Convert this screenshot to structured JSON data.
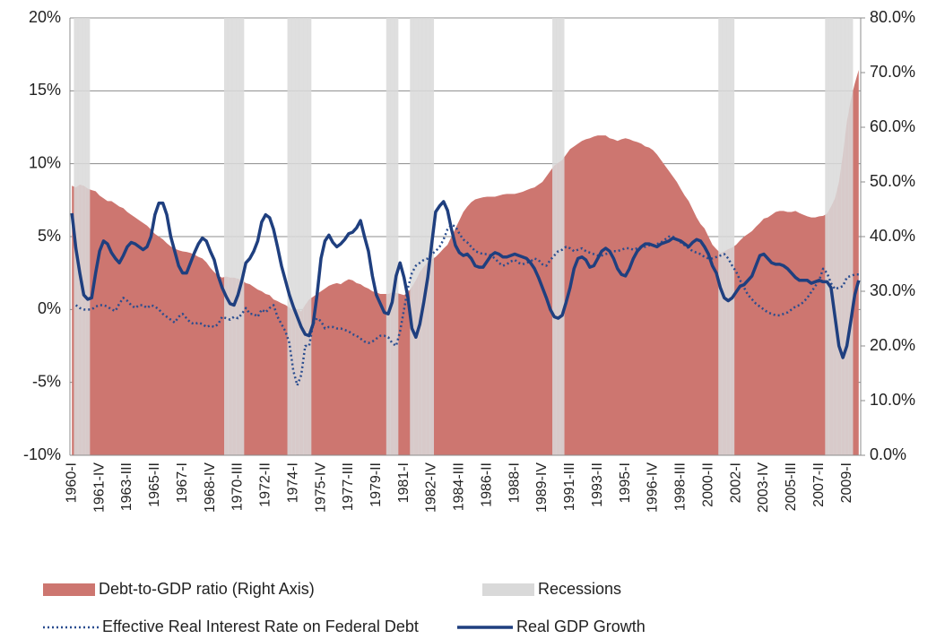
{
  "chart_data": {
    "type": "combo",
    "categories": [
      "1960-I",
      null,
      null,
      null,
      null,
      null,
      null,
      "1961-IV",
      null,
      null,
      null,
      null,
      null,
      null,
      "1963-III",
      null,
      null,
      null,
      null,
      null,
      null,
      "1965-II",
      null,
      null,
      null,
      null,
      null,
      null,
      "1967-I",
      null,
      null,
      null,
      null,
      null,
      null,
      "1968-IV",
      null,
      null,
      null,
      null,
      null,
      null,
      "1970-III",
      null,
      null,
      null,
      null,
      null,
      null,
      "1972-II",
      null,
      null,
      null,
      null,
      null,
      null,
      "1974-I",
      null,
      null,
      null,
      null,
      null,
      null,
      "1975-IV",
      null,
      null,
      null,
      null,
      null,
      null,
      "1977-III",
      null,
      null,
      null,
      null,
      null,
      null,
      "1979-II",
      null,
      null,
      null,
      null,
      null,
      null,
      "1981-I",
      null,
      null,
      null,
      null,
      null,
      null,
      "1982-IV",
      null,
      null,
      null,
      null,
      null,
      null,
      "1984-III",
      null,
      null,
      null,
      null,
      null,
      null,
      "1986-II",
      null,
      null,
      null,
      null,
      null,
      null,
      "1988-I",
      null,
      null,
      null,
      null,
      null,
      null,
      "1989-IV",
      null,
      null,
      null,
      null,
      null,
      null,
      "1991-III",
      null,
      null,
      null,
      null,
      null,
      null,
      "1993-II",
      null,
      null,
      null,
      null,
      null,
      null,
      "1995-I",
      null,
      null,
      null,
      null,
      null,
      null,
      "1996-IV",
      null,
      null,
      null,
      null,
      null,
      null,
      "1998-III",
      null,
      null,
      null,
      null,
      null,
      null,
      "2000-II",
      null,
      null,
      null,
      null,
      null,
      null,
      "2002-I",
      null,
      null,
      null,
      null,
      null,
      null,
      "2003-IV",
      null,
      null,
      null,
      null,
      null,
      null,
      "2005-III",
      null,
      null,
      null,
      null,
      null,
      null,
      "2007-II",
      null,
      null,
      null,
      null,
      null,
      null,
      "2009-I",
      null,
      null,
      null
    ],
    "ylim": [
      -10,
      20
    ],
    "yticks": [
      {
        "value": -10,
        "label": "-10%"
      },
      {
        "value": -5,
        "label": "-5%"
      },
      {
        "value": 0,
        "label": "0%"
      },
      {
        "value": 5,
        "label": "5%"
      },
      {
        "value": 10,
        "label": "10%"
      },
      {
        "value": 15,
        "label": "15%"
      },
      {
        "value": 20,
        "label": "20%"
      }
    ],
    "y2lim": [
      0,
      80
    ],
    "y2ticks": [
      {
        "value": 0,
        "label": "0.0%"
      },
      {
        "value": 10,
        "label": "10.0%"
      },
      {
        "value": 20,
        "label": "20.0%"
      },
      {
        "value": 30,
        "label": "30.0%"
      },
      {
        "value": 40,
        "label": "40.0%"
      },
      {
        "value": 50,
        "label": "50.0%"
      },
      {
        "value": 60,
        "label": "60.0%"
      },
      {
        "value": 70,
        "label": "70.0%"
      },
      {
        "value": 80,
        "label": "80.0%"
      }
    ],
    "grid": true,
    "series": [
      {
        "name": "Debt-to-GDP ratio (Right Axis)",
        "type": "area",
        "axis": "y2",
        "color": "#cd7670",
        "values": [
          49.3,
          49.0,
          49.5,
          49.3,
          48.8,
          48.5,
          48.3,
          47.5,
          47.0,
          46.5,
          46.5,
          46.0,
          45.5,
          45.2,
          44.5,
          44.0,
          43.5,
          43.0,
          42.5,
          42.0,
          41.3,
          40.5,
          40.0,
          39.5,
          38.8,
          38.2,
          37.8,
          37.5,
          37.3,
          37.2,
          37.0,
          36.7,
          36.3,
          36.0,
          35.3,
          34.3,
          33.5,
          32.8,
          32.5,
          32.7,
          32.5,
          32.5,
          32.3,
          32.0,
          31.5,
          31.3,
          30.8,
          30.3,
          30.0,
          29.5,
          29.3,
          28.5,
          28.2,
          27.8,
          27.5,
          27.0,
          26.5,
          26.7,
          26.3,
          27.5,
          28.5,
          29.0,
          29.5,
          30.0,
          30.5,
          31.0,
          31.3,
          31.5,
          31.3,
          31.8,
          32.2,
          32.0,
          31.5,
          31.3,
          30.8,
          30.5,
          30.0,
          29.8,
          29.5,
          29.5,
          29.5,
          29.8,
          29.7,
          29.5,
          29.3,
          29.8,
          30.8,
          32.0,
          33.5,
          34.5,
          35.3,
          35.8,
          36.3,
          37.0,
          37.8,
          38.5,
          40.0,
          41.5,
          43.0,
          44.5,
          45.5,
          46.3,
          46.8,
          47.0,
          47.2,
          47.3,
          47.3,
          47.3,
          47.5,
          47.7,
          47.8,
          47.8,
          47.8,
          48.0,
          48.2,
          48.5,
          48.8,
          49.0,
          49.5,
          50.0,
          51.0,
          52.0,
          53.0,
          53.5,
          54.0,
          55.0,
          56.0,
          56.5,
          57.0,
          57.5,
          57.8,
          58.0,
          58.3,
          58.5,
          58.5,
          58.5,
          58.0,
          57.8,
          57.5,
          57.8,
          58.0,
          57.8,
          57.5,
          57.3,
          57.0,
          56.5,
          56.3,
          55.8,
          55.0,
          54.0,
          53.0,
          52.0,
          51.0,
          50.0,
          48.7,
          47.5,
          46.5,
          45.0,
          43.5,
          42.3,
          41.5,
          40.0,
          38.5,
          37.7,
          37.0,
          37.3,
          37.7,
          38.0,
          38.5,
          39.3,
          40.0,
          40.5,
          41.0,
          41.8,
          42.5,
          43.3,
          43.5,
          44.0,
          44.5,
          44.7,
          44.7,
          44.5,
          44.5,
          44.7,
          44.3,
          44.0,
          43.7,
          43.5,
          43.5,
          43.7,
          43.8,
          44.2,
          45.5,
          47.0,
          50.0,
          55.0,
          61.0,
          65.0,
          68.0,
          70.5
        ]
      },
      {
        "name": "Recessions",
        "type": "bar",
        "axis": "y2",
        "color": "#d9d9d9",
        "values": [
          null,
          80,
          80,
          80,
          80,
          null,
          null,
          null,
          null,
          null,
          null,
          null,
          null,
          null,
          null,
          null,
          null,
          null,
          null,
          null,
          null,
          null,
          null,
          null,
          null,
          null,
          null,
          null,
          null,
          null,
          null,
          null,
          null,
          null,
          null,
          null,
          null,
          null,
          null,
          80,
          80,
          80,
          80,
          80,
          null,
          null,
          null,
          null,
          null,
          null,
          null,
          null,
          null,
          null,
          null,
          80,
          80,
          80,
          80,
          80,
          80,
          null,
          null,
          null,
          null,
          null,
          null,
          null,
          null,
          null,
          null,
          null,
          null,
          null,
          null,
          null,
          null,
          null,
          null,
          null,
          80,
          80,
          80,
          null,
          null,
          null,
          80,
          80,
          80,
          80,
          80,
          80,
          null,
          null,
          null,
          null,
          null,
          null,
          null,
          null,
          null,
          null,
          null,
          null,
          null,
          null,
          null,
          null,
          null,
          null,
          null,
          null,
          null,
          null,
          null,
          null,
          null,
          null,
          null,
          null,
          null,
          null,
          80,
          80,
          80,
          null,
          null,
          null,
          null,
          null,
          null,
          null,
          null,
          null,
          null,
          null,
          null,
          null,
          null,
          null,
          null,
          null,
          null,
          null,
          null,
          null,
          null,
          null,
          null,
          null,
          null,
          null,
          null,
          null,
          null,
          null,
          null,
          null,
          null,
          null,
          null,
          null,
          null,
          null,
          80,
          80,
          80,
          80,
          null,
          null,
          null,
          null,
          null,
          null,
          null,
          null,
          null,
          null,
          null,
          null,
          null,
          null,
          null,
          null,
          null,
          null,
          null,
          null,
          null,
          null,
          null,
          80,
          80,
          80,
          80,
          80,
          80,
          80,
          null,
          null
        ]
      },
      {
        "name": "Effective Real Interest Rate on Federal Debt",
        "type": "line",
        "dash": "dotted",
        "color": "#2a4d8f",
        "values": [
          null,
          0.3,
          0.1,
          0.0,
          0.0,
          0.0,
          0.2,
          0.3,
          0.3,
          0.2,
          0.0,
          -0.1,
          0.4,
          0.8,
          0.6,
          0.3,
          0.1,
          0.3,
          0.3,
          0.1,
          0.3,
          0.2,
          0.0,
          -0.3,
          -0.5,
          -0.7,
          -0.9,
          -0.5,
          -0.3,
          -0.6,
          -0.9,
          -1.0,
          -0.9,
          -1.0,
          -1.2,
          -1.1,
          -1.2,
          -1.0,
          -0.5,
          -0.6,
          -0.7,
          -0.5,
          -0.6,
          -0.3,
          0.1,
          -0.3,
          -0.3,
          -0.5,
          0.0,
          -0.2,
          0.1,
          0.3,
          -0.5,
          -1.0,
          -1.5,
          -2.3,
          -4.2,
          -5.2,
          -4.5,
          -2.5,
          -2.5,
          -1.0,
          -0.6,
          -0.8,
          -1.3,
          -1.2,
          -1.2,
          -1.3,
          -1.3,
          -1.4,
          -1.5,
          -1.7,
          -1.8,
          -2.0,
          -2.2,
          -2.3,
          -2.2,
          -2.0,
          -1.8,
          -1.8,
          -1.9,
          -2.3,
          -2.5,
          -1.5,
          0.0,
          1.5,
          2.5,
          3.0,
          3.2,
          3.4,
          3.5,
          3.8,
          4.0,
          4.3,
          4.8,
          5.5,
          5.8,
          5.7,
          5.2,
          4.8,
          4.6,
          4.3,
          4.0,
          3.9,
          3.8,
          3.8,
          3.7,
          3.5,
          3.2,
          3.0,
          3.1,
          3.3,
          3.4,
          3.2,
          3.1,
          3.2,
          3.3,
          3.5,
          3.4,
          3.1,
          3.0,
          3.4,
          3.7,
          4.0,
          4.1,
          4.3,
          4.2,
          4.0,
          4.1,
          4.2,
          4.0,
          3.9,
          3.8,
          3.7,
          3.7,
          3.8,
          3.9,
          4.0,
          4.0,
          4.1,
          4.2,
          4.2,
          4.1,
          4.2,
          4.3,
          4.3,
          4.4,
          4.4,
          4.5,
          4.6,
          4.8,
          5.0,
          5.0,
          4.8,
          4.6,
          4.4,
          4.2,
          4.0,
          3.9,
          3.8,
          3.6,
          3.5,
          3.5,
          3.6,
          3.7,
          3.8,
          3.5,
          3.0,
          2.6,
          2.0,
          1.5,
          1.0,
          0.7,
          0.4,
          0.2,
          0.0,
          -0.2,
          -0.3,
          -0.4,
          -0.4,
          -0.3,
          -0.2,
          0.0,
          0.2,
          0.3,
          0.5,
          0.8,
          1.2,
          1.6,
          2.0,
          2.8,
          2.5,
          1.8,
          1.4,
          1.5,
          1.6,
          2.2,
          2.3,
          2.4,
          2.4
        ]
      },
      {
        "name": "Real GDP Growth",
        "type": "line",
        "dash": "solid",
        "color": "#1f3f7f",
        "values": [
          6.6,
          4.2,
          2.5,
          1.0,
          0.7,
          0.8,
          2.5,
          4.0,
          4.7,
          4.5,
          3.9,
          3.5,
          3.2,
          3.7,
          4.3,
          4.6,
          4.5,
          4.3,
          4.1,
          4.3,
          5.0,
          6.5,
          7.3,
          7.3,
          6.5,
          5.0,
          4.0,
          3.0,
          2.5,
          2.5,
          3.2,
          3.9,
          4.5,
          4.9,
          4.7,
          4.0,
          3.4,
          2.3,
          1.5,
          0.9,
          0.4,
          0.3,
          1.0,
          2.0,
          3.2,
          3.5,
          4.0,
          4.7,
          6.0,
          6.5,
          6.3,
          5.5,
          4.3,
          3.0,
          2.0,
          1.0,
          0.2,
          -0.5,
          -1.2,
          -1.7,
          -1.8,
          -1.0,
          1.0,
          3.5,
          4.7,
          5.1,
          4.6,
          4.3,
          4.5,
          4.8,
          5.2,
          5.3,
          5.6,
          6.1,
          5.0,
          4.0,
          2.3,
          1.0,
          0.4,
          -0.2,
          -0.3,
          0.5,
          2.3,
          3.2,
          2.2,
          0.8,
          -1.3,
          -1.9,
          -1.0,
          0.5,
          2.2,
          4.5,
          6.7,
          7.1,
          7.4,
          6.8,
          5.5,
          4.4,
          3.9,
          3.7,
          3.8,
          3.5,
          3.0,
          2.9,
          2.9,
          3.3,
          3.7,
          3.9,
          3.8,
          3.6,
          3.6,
          3.7,
          3.8,
          3.7,
          3.6,
          3.5,
          3.2,
          2.8,
          2.2,
          1.5,
          0.8,
          0.0,
          -0.5,
          -0.6,
          -0.4,
          0.5,
          1.5,
          2.8,
          3.5,
          3.6,
          3.4,
          2.9,
          3.0,
          3.5,
          4.0,
          4.2,
          4.0,
          3.5,
          2.8,
          2.4,
          2.3,
          2.8,
          3.5,
          4.0,
          4.3,
          4.5,
          4.5,
          4.4,
          4.3,
          4.5,
          4.6,
          4.7,
          4.9,
          4.8,
          4.7,
          4.5,
          4.3,
          4.6,
          4.8,
          4.7,
          4.3,
          3.8,
          3.0,
          2.5,
          1.5,
          0.8,
          0.6,
          0.8,
          1.2,
          1.6,
          1.7,
          2.0,
          2.3,
          3.0,
          3.7,
          3.8,
          3.5,
          3.2,
          3.1,
          3.1,
          3.0,
          2.8,
          2.5,
          2.2,
          2.0,
          2.0,
          2.0,
          1.8,
          1.9,
          2.0,
          1.9,
          1.9,
          1.5,
          -0.5,
          -2.5,
          -3.3,
          -2.5,
          -0.8,
          1.0,
          2.0
        ]
      }
    ]
  }
}
